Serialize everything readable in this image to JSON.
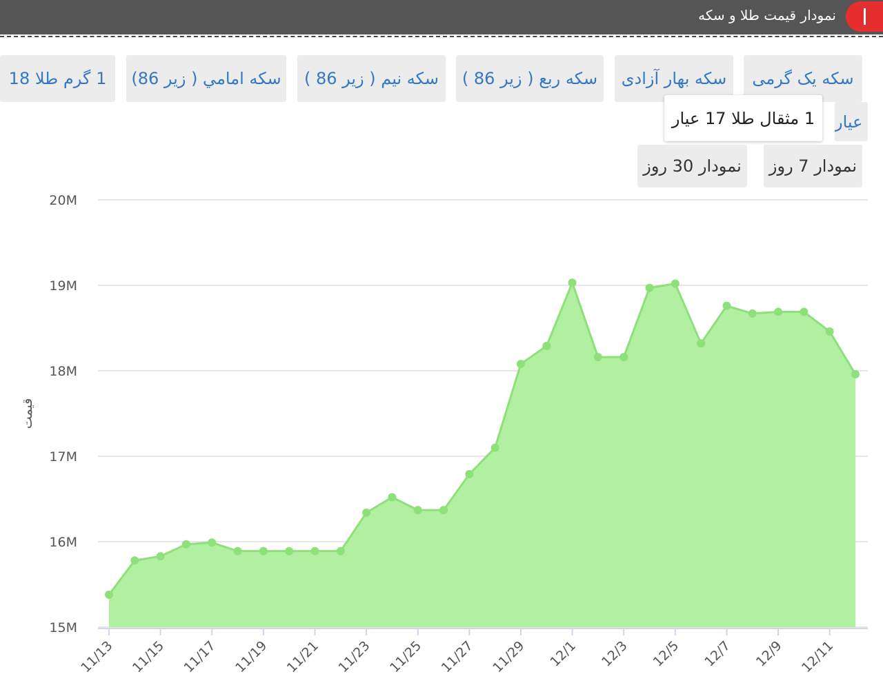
{
  "header": {
    "title": "نمودار قیمت طلا و سکه"
  },
  "tabs": {
    "products": [
      "سکه یک گرمی",
      "سکه بهار آزادی",
      "سکه ربع ( زیر 86 )",
      "سکه نیم ( زیر 86 )",
      "سکه امامي ( زیر 86)",
      "1 گرم طلا 18",
      "عیار",
      "1 مثقال طلا 17 عیار"
    ],
    "ranges": [
      "نمودار 7 روز",
      "نمودار 30 روز"
    ]
  },
  "chart_data": {
    "type": "area",
    "y_label": "قیمت",
    "color": "#8ee07a",
    "fill": "#b0f0a0",
    "grid": true,
    "categories": [
      "11/13",
      null,
      "11/15",
      null,
      "11/17",
      null,
      "11/19",
      null,
      "11/21",
      null,
      "11/23",
      null,
      "11/25",
      null,
      "11/27",
      null,
      "11/29",
      null,
      "12/1",
      null,
      "12/3",
      null,
      "12/5",
      null,
      "12/7",
      null,
      "12/9",
      null,
      "12/11",
      null
    ],
    "values": [
      15380000,
      15780000,
      15830000,
      15970000,
      15990000,
      15890000,
      15890000,
      15890000,
      15890000,
      15890000,
      16340000,
      16520000,
      16370000,
      16370000,
      16790000,
      17100000,
      18080000,
      18290000,
      19030000,
      18160000,
      18160000,
      18970000,
      19020000,
      18320000,
      18760000,
      18670000,
      18690000,
      18690000,
      18460000,
      17960000
    ],
    "ylim": [
      15000000,
      20000000
    ],
    "yticks": [
      {
        "value": 15000000,
        "label": "15M"
      },
      {
        "value": 16000000,
        "label": "16M"
      },
      {
        "value": 17000000,
        "label": "17M"
      },
      {
        "value": 18000000,
        "label": "18M"
      },
      {
        "value": 19000000,
        "label": "19M"
      },
      {
        "value": 20000000,
        "label": "20M"
      }
    ]
  }
}
